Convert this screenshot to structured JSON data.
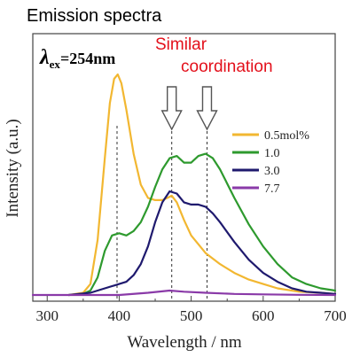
{
  "chart_data": {
    "type": "line",
    "heading": "Emission spectra",
    "excitation": {
      "symbol": "λ",
      "subscript": "ex",
      "value": "=254nm"
    },
    "annotation": [
      "Similar",
      "coordination"
    ],
    "xlabel": "Wavelength / nm",
    "ylabel": "Intensity (a.u.)",
    "xlim": [
      280,
      700
    ],
    "ylim": [
      0,
      1.0
    ],
    "xticks": [
      300,
      400,
      500,
      600,
      700
    ],
    "peak_markers": [
      397,
      473,
      522
    ],
    "arrow_positions": [
      473,
      522
    ],
    "legend_placement": "right",
    "series": [
      {
        "name": "0.5mol%",
        "color": "#f2b731",
        "x": [
          330,
          350,
          360,
          370,
          380,
          387,
          393,
          398,
          403,
          410,
          420,
          430,
          440,
          450,
          460,
          467,
          473,
          480,
          490,
          500,
          520,
          540,
          560,
          580,
          600,
          620,
          650,
          680,
          700
        ],
        "y": [
          0.0,
          0.01,
          0.05,
          0.25,
          0.62,
          0.87,
          0.98,
          1.0,
          0.96,
          0.84,
          0.64,
          0.5,
          0.44,
          0.43,
          0.43,
          0.44,
          0.45,
          0.42,
          0.34,
          0.27,
          0.19,
          0.14,
          0.1,
          0.07,
          0.05,
          0.03,
          0.015,
          0.01,
          0.005
        ]
      },
      {
        "name": "1.0",
        "color": "#2e9a2e",
        "x": [
          330,
          350,
          360,
          370,
          380,
          390,
          400,
          410,
          420,
          430,
          440,
          450,
          460,
          470,
          480,
          490,
          500,
          510,
          520,
          530,
          540,
          560,
          580,
          600,
          620,
          640,
          660,
          680,
          700
        ],
        "y": [
          0.0,
          0.005,
          0.02,
          0.08,
          0.2,
          0.27,
          0.28,
          0.27,
          0.29,
          0.33,
          0.4,
          0.49,
          0.57,
          0.62,
          0.63,
          0.6,
          0.6,
          0.63,
          0.64,
          0.62,
          0.57,
          0.44,
          0.32,
          0.22,
          0.14,
          0.08,
          0.05,
          0.03,
          0.02
        ]
      },
      {
        "name": "3.0",
        "color": "#1f1a6e",
        "x": [
          330,
          360,
          380,
          400,
          410,
          420,
          430,
          440,
          450,
          460,
          470,
          480,
          490,
          500,
          510,
          520,
          530,
          540,
          560,
          580,
          600,
          620,
          640,
          660,
          680,
          700
        ],
        "y": [
          0.0,
          0.01,
          0.03,
          0.05,
          0.06,
          0.09,
          0.14,
          0.22,
          0.33,
          0.42,
          0.47,
          0.46,
          0.42,
          0.41,
          0.41,
          0.4,
          0.37,
          0.33,
          0.24,
          0.16,
          0.1,
          0.06,
          0.03,
          0.015,
          0.01,
          0.005
        ]
      },
      {
        "name": "7.7",
        "color": "#8a3aa8",
        "x": [
          280,
          400,
          440,
          470,
          490,
          520,
          560,
          600,
          650,
          700
        ],
        "y": [
          0.0,
          0.0,
          0.01,
          0.02,
          0.015,
          0.01,
          0.005,
          0.003,
          0.001,
          0.0
        ]
      }
    ]
  }
}
